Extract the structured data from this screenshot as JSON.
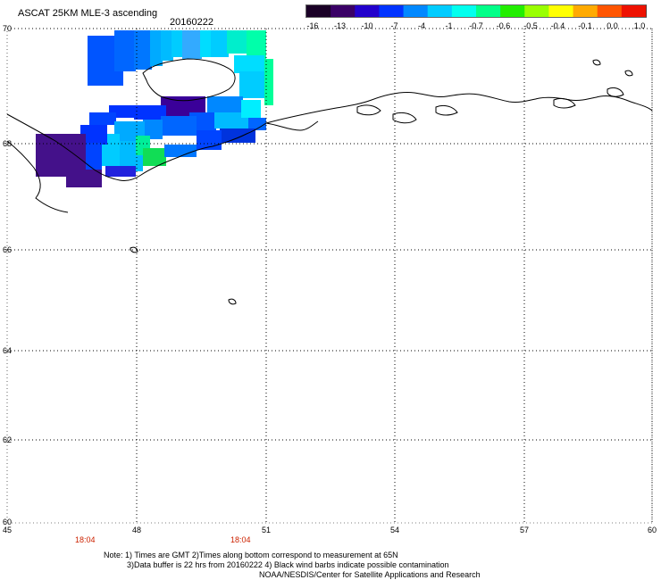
{
  "header": {
    "title": "ASCAT 25KM MLE-3 ascending",
    "date": "20160222"
  },
  "colorbar": {
    "labels": [
      "-16",
      "-13",
      "-10",
      "-7",
      "-4",
      "-1",
      "-0.7",
      "-0.6",
      "-0.5",
      "-0.4",
      "-0.1",
      "0.0",
      "1.0"
    ],
    "colors": [
      "#1a0026",
      "#3a0066",
      "#2200cc",
      "#0033ff",
      "#0088ff",
      "#00ccff",
      "#00ffee",
      "#00ff88",
      "#22ee00",
      "#99ff00",
      "#ffff00",
      "#ffaa00",
      "#ff5500",
      "#ee1100"
    ]
  },
  "map": {
    "lat_labels": [
      "70",
      "68",
      "66",
      "64",
      "62",
      "60"
    ],
    "lon_labels": [
      "45",
      "48",
      "51",
      "54",
      "57",
      "60"
    ],
    "time_labels": [
      "18:04",
      "18:04"
    ],
    "time_color": "#cc2200"
  },
  "notes": {
    "line1": "Note: 1) Times are GMT 2)Times along bottom correspond to measurement at 65N",
    "line2": "3)Data buffer is 22 hrs from 20160222 4) Black wind barbs indicate possible contamination",
    "line3": "NOAA/NESDIS/Center for Satellite Applications and Research"
  }
}
